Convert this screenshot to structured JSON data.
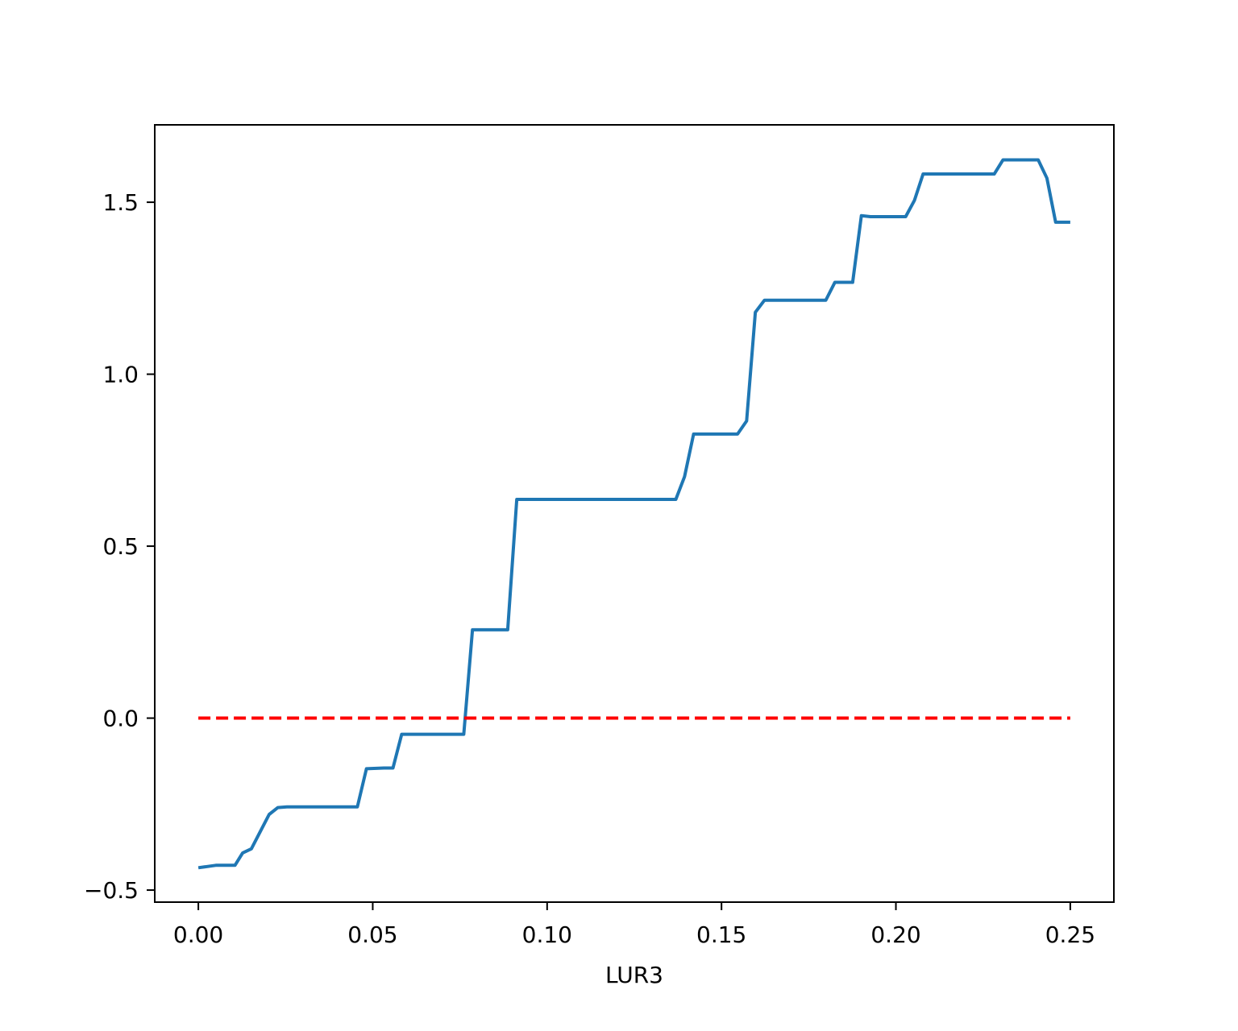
{
  "chart_data": {
    "type": "line",
    "title": "",
    "xlabel": "LUR3",
    "ylabel": "",
    "xlim": [
      -0.0125,
      0.2625
    ],
    "ylim": [
      -0.535,
      1.725
    ],
    "grid": false,
    "legend": "none",
    "x_ticks": [
      {
        "value": 0.0,
        "label": "0.00"
      },
      {
        "value": 0.05,
        "label": "0.05"
      },
      {
        "value": 0.1,
        "label": "0.10"
      },
      {
        "value": 0.15,
        "label": "0.15"
      },
      {
        "value": 0.2,
        "label": "0.20"
      },
      {
        "value": 0.25,
        "label": "0.25"
      }
    ],
    "y_ticks": [
      {
        "value": -0.5,
        "label": "−0.5"
      },
      {
        "value": 0.0,
        "label": "0.0"
      },
      {
        "value": 0.5,
        "label": "0.5"
      },
      {
        "value": 1.0,
        "label": "1.0"
      },
      {
        "value": 1.5,
        "label": "1.5"
      }
    ],
    "series": [
      {
        "color": "#1f77b4",
        "style": "solid",
        "x": [
          0.0,
          0.005,
          0.0105,
          0.0127,
          0.0152,
          0.0203,
          0.0228,
          0.0254,
          0.0456,
          0.0482,
          0.0532,
          0.0558,
          0.0583,
          0.0761,
          0.0786,
          0.0887,
          0.0913,
          0.1369,
          0.1394,
          0.142,
          0.1546,
          0.1572,
          0.1597,
          0.1623,
          0.1799,
          0.1825,
          0.1876,
          0.1901,
          0.1927,
          0.2028,
          0.2053,
          0.2078,
          0.2282,
          0.2307,
          0.2408,
          0.2433,
          0.2458,
          0.25
        ],
        "y": [
          -0.435,
          -0.428,
          -0.428,
          -0.392,
          -0.38,
          -0.28,
          -0.26,
          -0.258,
          -0.258,
          -0.147,
          -0.145,
          -0.145,
          -0.047,
          -0.047,
          0.257,
          0.257,
          0.636,
          0.636,
          0.702,
          0.826,
          0.826,
          0.864,
          1.18,
          1.215,
          1.215,
          1.267,
          1.267,
          1.461,
          1.458,
          1.458,
          1.505,
          1.582,
          1.582,
          1.623,
          1.623,
          1.57,
          1.442,
          1.442
        ]
      },
      {
        "color": "#ff0000",
        "style": "dashed",
        "x": [
          0.0,
          0.25
        ],
        "y": [
          0.0,
          0.0
        ]
      }
    ]
  }
}
